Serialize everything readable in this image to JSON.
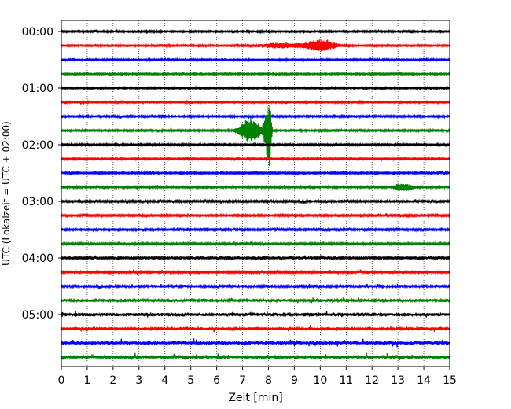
{
  "chart_data": {
    "type": "line",
    "title": "",
    "xlabel": "Zeit  [min]",
    "ylabel": "UTC (Lokalzeit = UTC + 02:00)",
    "xlim": [
      0,
      15
    ],
    "x_ticks": [
      "0",
      "1",
      "2",
      "3",
      "4",
      "5",
      "6",
      "7",
      "8",
      "9",
      "10",
      "11",
      "12",
      "13",
      "14",
      "15"
    ],
    "y_tick_labels": [
      "00:00",
      "01:00",
      "02:00",
      "03:00",
      "04:00",
      "05:00"
    ],
    "trace_interval_min": 15,
    "grid": "vertical dotted",
    "colors_cycle": [
      "#000000",
      "#ff0000",
      "#0000ff",
      "#008000"
    ],
    "traces": [
      {
        "start": "00:00",
        "color": "#000000",
        "noise": 0.9
      },
      {
        "start": "00:15",
        "color": "#ff0000",
        "noise": 0.9
      },
      {
        "start": "00:30",
        "color": "#0000ff",
        "noise": 0.9
      },
      {
        "start": "00:45",
        "color": "#008000",
        "noise": 0.9
      },
      {
        "start": "01:00",
        "color": "#000000",
        "noise": 0.9
      },
      {
        "start": "01:15",
        "color": "#ff0000",
        "noise": 0.9
      },
      {
        "start": "01:30",
        "color": "#0000ff",
        "noise": 1.0
      },
      {
        "start": "01:45",
        "color": "#008000",
        "noise": 1.0
      },
      {
        "start": "02:00",
        "color": "#000000",
        "noise": 1.0
      },
      {
        "start": "02:15",
        "color": "#ff0000",
        "noise": 1.0
      },
      {
        "start": "02:30",
        "color": "#0000ff",
        "noise": 1.0
      },
      {
        "start": "02:45",
        "color": "#008000",
        "noise": 1.0
      },
      {
        "start": "03:00",
        "color": "#000000",
        "noise": 1.1
      },
      {
        "start": "03:15",
        "color": "#ff0000",
        "noise": 1.1
      },
      {
        "start": "03:30",
        "color": "#0000ff",
        "noise": 1.1
      },
      {
        "start": "03:45",
        "color": "#008000",
        "noise": 1.1
      },
      {
        "start": "04:00",
        "color": "#000000",
        "noise": 1.3
      },
      {
        "start": "04:15",
        "color": "#ff0000",
        "noise": 1.3
      },
      {
        "start": "04:30",
        "color": "#0000ff",
        "noise": 1.4
      },
      {
        "start": "04:45",
        "color": "#008000",
        "noise": 1.6
      },
      {
        "start": "05:00",
        "color": "#000000",
        "noise": 1.8
      },
      {
        "start": "05:15",
        "color": "#ff0000",
        "noise": 1.8
      },
      {
        "start": "05:30",
        "color": "#0000ff",
        "noise": 1.9
      },
      {
        "start": "05:45",
        "color": "#008000",
        "noise": 1.9
      }
    ],
    "events": [
      {
        "trace": 1,
        "center_min": 10.0,
        "width_min": 0.6,
        "amp": 7.0
      },
      {
        "trace": 1,
        "center_min": 8.5,
        "width_min": 0.8,
        "amp": 3.0
      },
      {
        "trace": 7,
        "center_min": 7.3,
        "width_min": 0.4,
        "amp": 16.0
      },
      {
        "trace": 7,
        "center_min": 7.95,
        "width_min": 0.12,
        "amp": 28.0
      },
      {
        "trace": 7,
        "center_min": 8.05,
        "width_min": 0.06,
        "amp": 36.0
      },
      {
        "trace": 11,
        "center_min": 13.2,
        "width_min": 0.4,
        "amp": 4.5
      }
    ]
  }
}
